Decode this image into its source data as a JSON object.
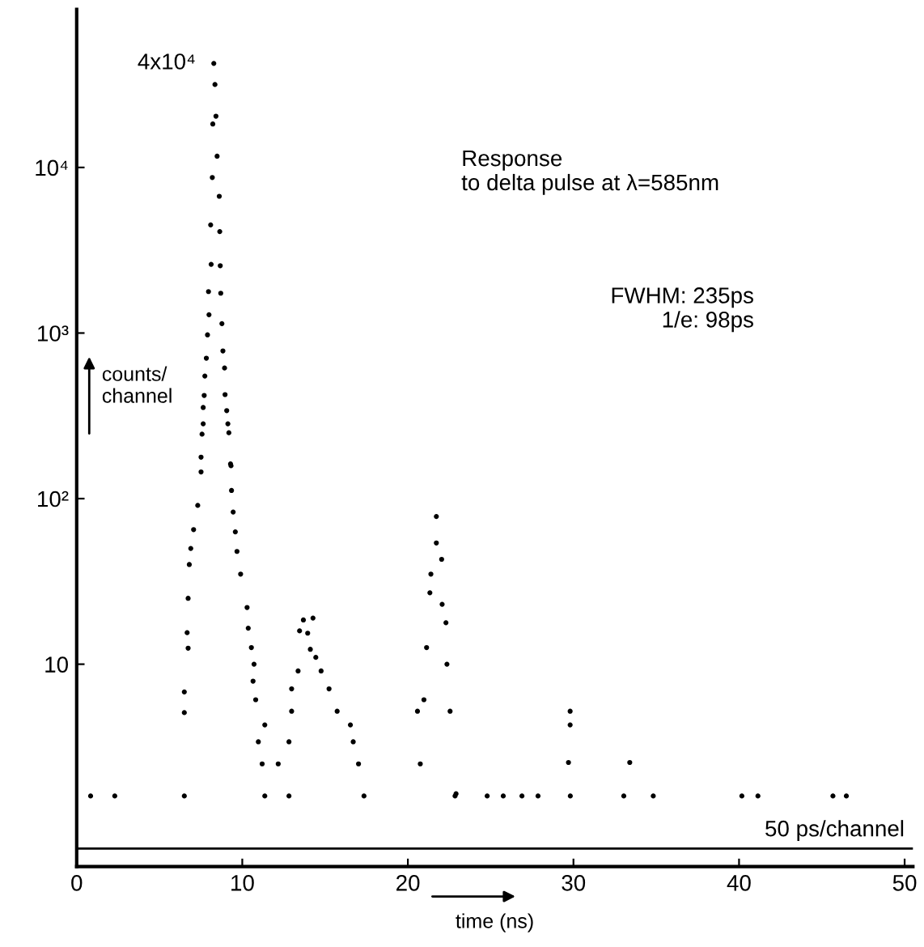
{
  "chart_data": {
    "type": "scatter",
    "xlabel": "time (ns)",
    "ylabel": "counts/\nchannel",
    "x": [
      8.28,
      8.35,
      8.41,
      8.22,
      8.48,
      8.19,
      8.61,
      8.09,
      8.64,
      8.12,
      8.67,
      7.96,
      8.7,
      7.99,
      8.77,
      7.9,
      8.83,
      7.83,
      8.93,
      7.74,
      7.7,
      8.96,
      7.64,
      9.06,
      7.64,
      9.13,
      7.57,
      9.19,
      7.51,
      9.29,
      7.51,
      9.32,
      9.35,
      7.31,
      9.45,
      7.06,
      9.58,
      6.89,
      9.68,
      6.8,
      9.9,
      6.73,
      10.29,
      6.67,
      10.36,
      6.73,
      10.55,
      10.71,
      6.5,
      6.5,
      10.65,
      10.81,
      11.36,
      10.97,
      11.2,
      11.36,
      13.69,
      14.27,
      13.46,
      13.95,
      14.11,
      14.44,
      14.76,
      13.37,
      12.98,
      15.24,
      12.98,
      15.73,
      12.82,
      16.53,
      16.7,
      17.02,
      12.17,
      12.82,
      17.35,
      21.72,
      21.72,
      22.04,
      21.39,
      21.33,
      22.07,
      22.3,
      21.13,
      22.36,
      20.97,
      20.58,
      22.55,
      20.75,
      22.91,
      0.84,
      2.3,
      6.5,
      29.8,
      29.8,
      29.7,
      33.4,
      22.85,
      24.79,
      25.76,
      26.89,
      27.86,
      29.81,
      33.04,
      34.82,
      40.17,
      41.14,
      45.67,
      46.48
    ],
    "series": [
      {
        "color": "#000000",
        "values": [
          42500,
          31700,
          20400,
          18300,
          11700,
          8700,
          6700,
          4500,
          4100,
          2600,
          2550,
          1780,
          1740,
          1290,
          1140,
          975,
          780,
          705,
          615,
          550,
          420,
          425,
          355,
          340,
          283,
          283,
          245,
          250,
          178,
          162,
          145,
          158,
          112,
          91,
          83,
          65,
          63,
          50,
          48,
          40,
          35,
          25,
          22,
          15.5,
          16.5,
          12.5,
          12.6,
          10,
          6.8,
          5.1,
          7.9,
          6.1,
          4.3,
          3.4,
          2.5,
          1.6,
          18.5,
          19,
          15.9,
          15.4,
          12.3,
          11,
          9.1,
          9.1,
          7.1,
          7.1,
          5.2,
          5.2,
          3.4,
          4.3,
          3.4,
          2.5,
          2.5,
          1.6,
          1.6,
          78,
          54,
          43,
          35,
          27,
          23,
          17.8,
          12.6,
          10,
          6.1,
          5.2,
          5.2,
          2.5,
          1.65,
          1.6,
          1.6,
          1.6,
          5.2,
          4.3,
          2.55,
          2.55,
          1.6,
          1.6,
          1.6,
          1.6,
          1.6,
          1.6,
          1.6,
          1.6,
          1.6,
          1.6,
          1.6,
          1.6
        ]
      }
    ],
    "marker": "circle",
    "log": "y",
    "grid": false,
    "xlim": [
      0,
      50.5
    ],
    "xticks": [
      0,
      10,
      20,
      30,
      40,
      50
    ],
    "ylim": [
      0.6,
      90000
    ],
    "yticks": [
      10,
      {
        "value": 100,
        "label": "10²"
      },
      {
        "value": 1000,
        "label": "10³"
      },
      {
        "value": 10000,
        "label": "10⁴"
      }
    ],
    "ref_lines": [
      {
        "axis": "y",
        "value": 0.77,
        "color": "#000000"
      }
    ],
    "annotations": [
      {
        "text": "4x10⁴",
        "x": 8.28,
        "y": 42500
      },
      "Response\nto delta pulse at λ=585nm",
      "FWHM: 235ps\n1/e: 98ps",
      "50 ps/channel"
    ]
  }
}
